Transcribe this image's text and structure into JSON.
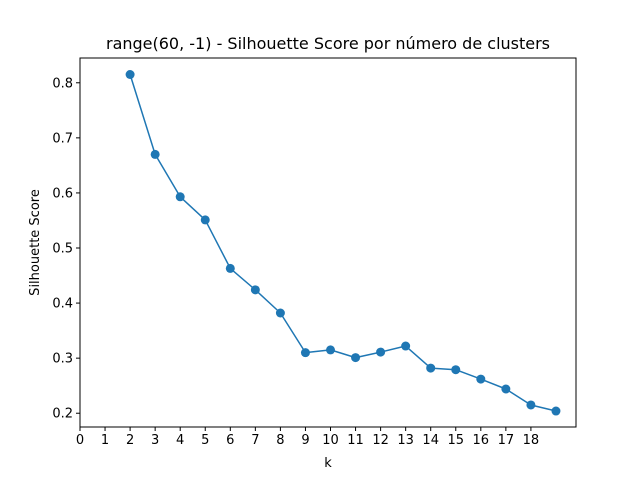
{
  "chart_data": {
    "type": "line",
    "title": "range(60, -1) - Silhouette Score por número de clusters",
    "xlabel": "k",
    "ylabel": "Silhouette Score",
    "xlim": [
      0,
      19.8
    ],
    "ylim": [
      0.175,
      0.845
    ],
    "x_ticks": [
      0,
      1,
      2,
      3,
      4,
      5,
      6,
      7,
      8,
      9,
      10,
      11,
      12,
      13,
      14,
      15,
      16,
      17,
      18
    ],
    "y_ticks": [
      0.2,
      0.3,
      0.4,
      0.5,
      0.6,
      0.7,
      0.8
    ],
    "grid": false,
    "series": [
      {
        "color": "#1f77b4",
        "marker": "circle",
        "x": [
          2,
          3,
          4,
          5,
          6,
          7,
          8,
          9,
          10,
          11,
          12,
          13,
          14,
          15,
          16,
          17,
          18,
          19
        ],
        "y": [
          0.815,
          0.67,
          0.593,
          0.551,
          0.463,
          0.424,
          0.382,
          0.31,
          0.315,
          0.301,
          0.311,
          0.322,
          0.282,
          0.279,
          0.262,
          0.244,
          0.215,
          0.204
        ]
      }
    ]
  }
}
